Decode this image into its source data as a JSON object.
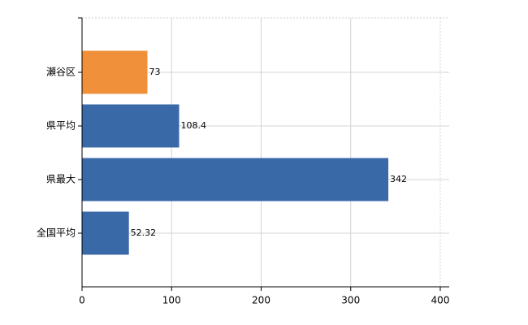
{
  "chart_data": {
    "type": "barh",
    "categories": [
      "瀬谷区",
      "県平均",
      "県最大",
      "全国平均"
    ],
    "values": [
      73,
      108.4,
      342,
      52.32
    ],
    "colors": [
      "#f0903a",
      "#3a69a8",
      "#3a69a8",
      "#3a69a8"
    ],
    "xlim": [
      0,
      400
    ],
    "xticks": [
      0,
      100,
      200,
      300,
      400
    ],
    "grid": true
  }
}
